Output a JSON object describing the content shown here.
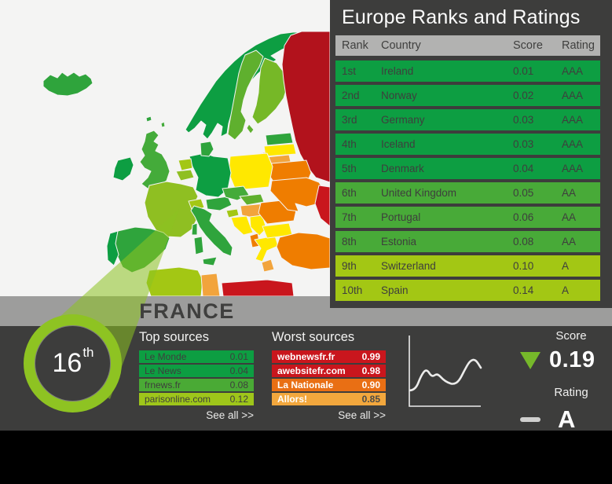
{
  "title": "Europe Ranks and Ratings",
  "colors": {
    "panel": "#3d3d3c",
    "band": "#9d9d9c",
    "header": "#b2b2b1",
    "accent_lime": "#8ec322",
    "trend_green": "#76b82a",
    "map_background": "#f4f4f3"
  },
  "table": {
    "headers": {
      "rank": "Rank",
      "country": "Country",
      "score": "Score",
      "rating": "Rating"
    },
    "rows": [
      {
        "rank": "1st",
        "country": "Ireland",
        "score": "0.01",
        "rating": "AAA",
        "color": "#0d9e42"
      },
      {
        "rank": "2nd",
        "country": "Norway",
        "score": "0.02",
        "rating": "AAA",
        "color": "#0d9e42"
      },
      {
        "rank": "3rd",
        "country": "Germany",
        "score": "0.03",
        "rating": "AAA",
        "color": "#0d9e42"
      },
      {
        "rank": "4th",
        "country": "Iceland",
        "score": "0.03",
        "rating": "AAA",
        "color": "#0d9e42"
      },
      {
        "rank": "5th",
        "country": "Denmark",
        "score": "0.04",
        "rating": "AAA",
        "color": "#0d9e42"
      },
      {
        "rank": "6th",
        "country": "United Kingdom",
        "score": "0.05",
        "rating": "AA",
        "color": "#48aa38"
      },
      {
        "rank": "7th",
        "country": "Portugal",
        "score": "0.06",
        "rating": "AA",
        "color": "#48aa38"
      },
      {
        "rank": "8th",
        "country": "Estonia",
        "score": "0.08",
        "rating": "AA",
        "color": "#48aa38"
      },
      {
        "rank": "9th",
        "country": "Switzerland",
        "score": "0.10",
        "rating": "A",
        "color": "#a3c714"
      },
      {
        "rank": "10th",
        "country": "Spain",
        "score": "0.14",
        "rating": "A",
        "color": "#a3c714"
      }
    ]
  },
  "france": {
    "name": "FRANCE",
    "rank": "16",
    "rank_suffix": "th",
    "score_label": "Score",
    "score": "0.19",
    "score_trend_icon": "triangle-down",
    "rating_label": "Rating",
    "rating": "A",
    "rating_trend_icon": "dash-neutral",
    "top_sources": {
      "title": "Top sources",
      "see_all": "See all >>",
      "rows": [
        {
          "name": "Le Monde",
          "score": "0.01",
          "color": "#0d9e42"
        },
        {
          "name": "Le News",
          "score": "0.04",
          "color": "#0d9e42"
        },
        {
          "name": "frnews.fr",
          "score": "0.08",
          "color": "#4aaa35"
        },
        {
          "name": "parisonline.com",
          "score": "0.12",
          "color": "#9ec61a"
        }
      ]
    },
    "worst_sources": {
      "title": "Worst sources",
      "see_all": "See all >>",
      "rows": [
        {
          "name": "webnewsfr.fr",
          "score": "0.99",
          "color": "#c9161d",
          "text": "#ffffff",
          "score_text": "#ffffff"
        },
        {
          "name": "awebsitefr.com",
          "score": "0.98",
          "color": "#c9161d",
          "text": "#ffffff",
          "score_text": "#ffffff"
        },
        {
          "name": "La Nationale",
          "score": "0.90",
          "color": "#e96f14",
          "text": "#ffffff",
          "score_text": "#ffffff"
        },
        {
          "name": "Allors!",
          "score": "0.85",
          "color": "#f2a73d",
          "text": "#ffffff",
          "score_text": "#4a4a48"
        }
      ]
    }
  },
  "chart_data": {
    "type": "line",
    "title": "France score trend sparkline (axes unlabeled)",
    "xlabel": "",
    "ylabel": "",
    "grid": false,
    "legend": "none",
    "values": [
      0.19,
      0.2,
      0.48,
      0.625,
      0.45,
      0.53,
      0.41,
      0.34,
      0.31,
      0.375,
      0.59,
      0.78,
      0.81,
      0.64
    ],
    "value_range": [
      0,
      1
    ],
    "line_color": "#ececeb"
  },
  "map": {
    "background": "#f4f4f3",
    "palette": {
      "green_dark": "#0d9e42",
      "green": "#2fa43c",
      "green_mid": "#44ab3a",
      "green_soft": "#5fb02e",
      "green_light": "#76b827",
      "lime": "#8fbf22",
      "lime_light": "#a3c714",
      "yellow": "#ffe800",
      "orange": "#ef7d00",
      "orange_light": "#f2a43c",
      "red": "#c9161d",
      "red_dark": "#b2121c",
      "beam": "rgba(140,194,32,0.55)"
    }
  }
}
